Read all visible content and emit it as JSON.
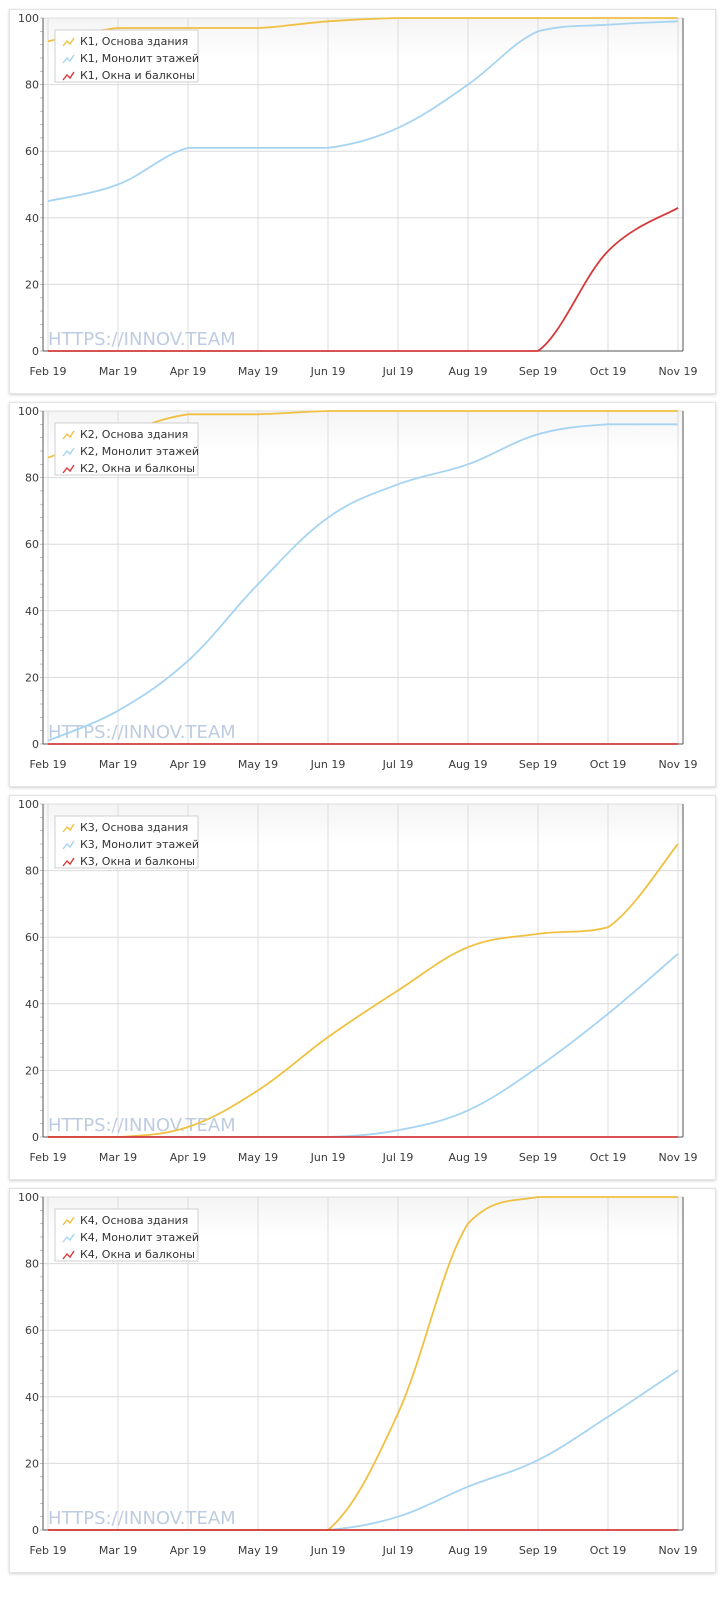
{
  "watermark": "HTTPS://INNOV.TEAM",
  "series_colors": {
    "base": "#f0c040",
    "monolith": "#a6d4f2",
    "windows": "#d43a3a"
  },
  "chart_data": [
    {
      "type": "line",
      "x_labels": [
        "Feb 19",
        "Mar 19",
        "Apr 19",
        "May 19",
        "Jun 19",
        "Jul 19",
        "Aug 19",
        "Sep 19",
        "Oct 19",
        "Nov 19"
      ],
      "y_ticks": [
        0,
        20,
        40,
        60,
        80,
        100
      ],
      "ylim": [
        0,
        100
      ],
      "grid": true,
      "legend_position": "top-left",
      "x": [
        "Feb 19",
        "Mar 19",
        "Apr 19",
        "May 19",
        "Jun 19",
        "Jul 19",
        "Aug 19",
        "Sep 19",
        "Oct 19",
        "Nov 19"
      ],
      "series": [
        {
          "name": "К1, Основа здания",
          "values": [
            93,
            97,
            97,
            97,
            99,
            100,
            100,
            100,
            100,
            100
          ]
        },
        {
          "name": "К1, Монолит этажей",
          "values": [
            45,
            50,
            61,
            61,
            61,
            67,
            80,
            96,
            98,
            99
          ]
        },
        {
          "name": "К1, Окна и балконы",
          "values": [
            0,
            0,
            0,
            0,
            0,
            0,
            0,
            0,
            30,
            43
          ]
        }
      ]
    },
    {
      "type": "line",
      "x_labels": [
        "Feb 19",
        "Mar 19",
        "Apr 19",
        "May 19",
        "Jun 19",
        "Jul 19",
        "Aug 19",
        "Sep 19",
        "Oct 19",
        "Nov 19"
      ],
      "y_ticks": [
        0,
        20,
        40,
        60,
        80,
        100
      ],
      "ylim": [
        0,
        100
      ],
      "grid": true,
      "legend_position": "top-left",
      "x": [
        "Feb 19",
        "Mar 19",
        "Apr 19",
        "May 19",
        "Jun 19",
        "Jul 19",
        "Aug 19",
        "Sep 19",
        "Oct 19",
        "Nov 19"
      ],
      "series": [
        {
          "name": "К2, Основа здания",
          "values": [
            86,
            93,
            99,
            99,
            100,
            100,
            100,
            100,
            100,
            100
          ]
        },
        {
          "name": "К2, Монолит этажей",
          "values": [
            1,
            10,
            25,
            48,
            68,
            78,
            84,
            93,
            96,
            96
          ]
        },
        {
          "name": "К2, Окна и балконы",
          "values": [
            0,
            0,
            0,
            0,
            0,
            0,
            0,
            0,
            0,
            0
          ]
        }
      ]
    },
    {
      "type": "line",
      "x_labels": [
        "Feb 19",
        "Mar 19",
        "Apr 19",
        "May 19",
        "Jun 19",
        "Jul 19",
        "Aug 19",
        "Sep 19",
        "Oct 19",
        "Nov 19"
      ],
      "y_ticks": [
        0,
        20,
        40,
        60,
        80,
        100
      ],
      "ylim": [
        0,
        100
      ],
      "grid": true,
      "legend_position": "top-left",
      "x": [
        "Feb 19",
        "Mar 19",
        "Apr 19",
        "May 19",
        "Jun 19",
        "Jul 19",
        "Aug 19",
        "Sep 19",
        "Oct 19",
        "Nov 19"
      ],
      "series": [
        {
          "name": "К3, Основа здания",
          "values": [
            0,
            0,
            3,
            14,
            30,
            44,
            57,
            61,
            63,
            88
          ]
        },
        {
          "name": "К3, Монолит этажей",
          "values": [
            0,
            0,
            0,
            0,
            0,
            2,
            8,
            21,
            37,
            55
          ]
        },
        {
          "name": "К3, Окна и балконы",
          "values": [
            0,
            0,
            0,
            0,
            0,
            0,
            0,
            0,
            0,
            0
          ]
        }
      ]
    },
    {
      "type": "line",
      "x_labels": [
        "Feb 19",
        "Mar 19",
        "Apr 19",
        "May 19",
        "Jun 19",
        "Jul 19",
        "Aug 19",
        "Sep 19",
        "Oct 19",
        "Nov 19"
      ],
      "y_ticks": [
        0,
        20,
        40,
        60,
        80,
        100
      ],
      "ylim": [
        0,
        100
      ],
      "grid": true,
      "legend_position": "top-left",
      "x": [
        "Feb 19",
        "Mar 19",
        "Apr 19",
        "May 19",
        "Jun 19",
        "Jul 19",
        "Aug 19",
        "Sep 19",
        "Oct 19",
        "Nov 19"
      ],
      "series": [
        {
          "name": "К4, Основа здания",
          "values": [
            0,
            0,
            0,
            0,
            0,
            35,
            92,
            100,
            100,
            100
          ]
        },
        {
          "name": "К4, Монолит этажей",
          "values": [
            0,
            0,
            0,
            0,
            0,
            4,
            13,
            21,
            34,
            48
          ]
        },
        {
          "name": "К4, Окна и балконы",
          "values": [
            0,
            0,
            0,
            0,
            0,
            0,
            0,
            0,
            0,
            0
          ]
        }
      ]
    }
  ]
}
